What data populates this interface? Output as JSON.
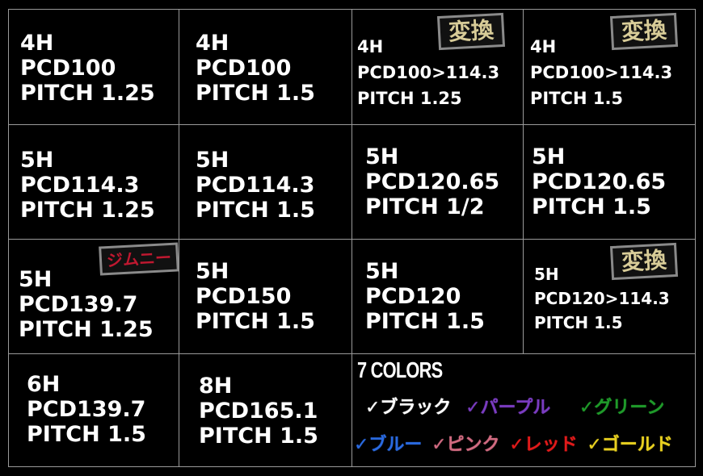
{
  "cells": [
    {
      "lines": [
        "4H",
        "PCD100",
        "PITCH 1.25"
      ]
    },
    {
      "lines": [
        "4H",
        "PCD100",
        "PITCH 1.5"
      ]
    },
    {
      "lines": [
        "4H",
        "PCD100>114.3",
        "PITCH 1.25"
      ],
      "badge": "変換"
    },
    {
      "lines": [
        "4H",
        "PCD100>114.3",
        "PITCH 1.5"
      ],
      "badge": "変換"
    },
    {
      "lines": [
        "5H",
        "PCD114.3",
        "PITCH 1.25"
      ]
    },
    {
      "lines": [
        "5H",
        "PCD114.3",
        "PITCH 1.5"
      ]
    },
    {
      "lines": [
        "5H",
        "PCD120.65",
        "PITCH 1/2"
      ]
    },
    {
      "lines": [
        "5H",
        "PCD120.65",
        "PITCH 1.5"
      ]
    },
    {
      "lines": [
        "5H",
        "PCD139.7",
        "PITCH 1.25"
      ],
      "badge": "ジムニー"
    },
    {
      "lines": [
        "5H",
        "PCD150",
        "PITCH 1.5"
      ]
    },
    {
      "lines": [
        "5H",
        "PCD120",
        "PITCH 1.5"
      ]
    },
    {
      "lines": [
        "5H",
        "PCD120>114.3",
        "PITCH 1.5"
      ],
      "badge": "変換"
    },
    {
      "lines": [
        "6H",
        "PCD139.7",
        "PITCH 1.5"
      ]
    },
    {
      "lines": [
        "8H",
        "PCD165.1",
        "PITCH 1.5"
      ]
    }
  ],
  "colors": {
    "title": "7 COLORS",
    "items": [
      {
        "label": "✓ブラック",
        "color": "#ffffff"
      },
      {
        "label": "✓パープル",
        "color": "#7a3cc0"
      },
      {
        "label": "✓グリーン",
        "color": "#1f9a2a"
      },
      {
        "label": "✓ブルー",
        "color": "#2a6ae0"
      },
      {
        "label": "✓ピンク",
        "color": "#d06a80"
      },
      {
        "label": "✓レッド",
        "color": "#e01a1a"
      },
      {
        "label": "✓ゴールド",
        "color": "#e8d020"
      }
    ]
  }
}
